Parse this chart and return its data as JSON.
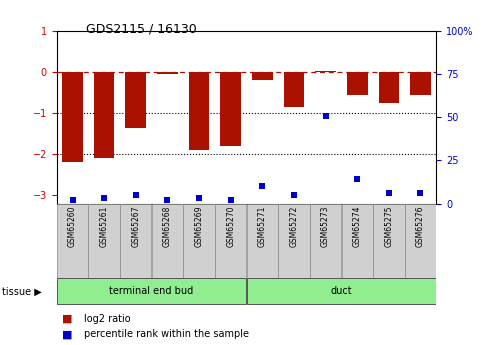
{
  "title": "GDS2115 / 16130",
  "samples": [
    "GSM65260",
    "GSM65261",
    "GSM65267",
    "GSM65268",
    "GSM65269",
    "GSM65270",
    "GSM65271",
    "GSM65272",
    "GSM65273",
    "GSM65274",
    "GSM65275",
    "GSM65276"
  ],
  "log2_ratio": [
    -2.2,
    -2.1,
    -1.35,
    -0.05,
    -1.9,
    -1.8,
    -0.18,
    -0.85,
    0.03,
    -0.55,
    -0.75,
    -0.55
  ],
  "percentile": [
    2,
    3,
    5,
    2,
    3,
    2,
    10,
    5,
    51,
    14,
    6,
    6
  ],
  "ylim_left": [
    -3.2,
    1.0
  ],
  "ylim_right": [
    0,
    100
  ],
  "bar_color": "#aa1100",
  "dot_color": "#0000cc",
  "dotted_lines": [
    -1,
    -2
  ],
  "left_yticks": [
    1,
    0,
    -1,
    -2,
    -3
  ],
  "right_yticks": [
    100,
    75,
    50,
    25,
    0
  ],
  "right_ytick_labels": [
    "100%",
    "75",
    "50",
    "25",
    "0"
  ],
  "group1_label": "terminal end bud",
  "group2_label": "duct",
  "group1_color": "#90ee90",
  "group2_color": "#90ee90",
  "tissue_label": "tissue",
  "legend_bar_label": "log2 ratio",
  "legend_dot_label": "percentile rank within the sample",
  "n_group1": 6,
  "n_group2": 6
}
